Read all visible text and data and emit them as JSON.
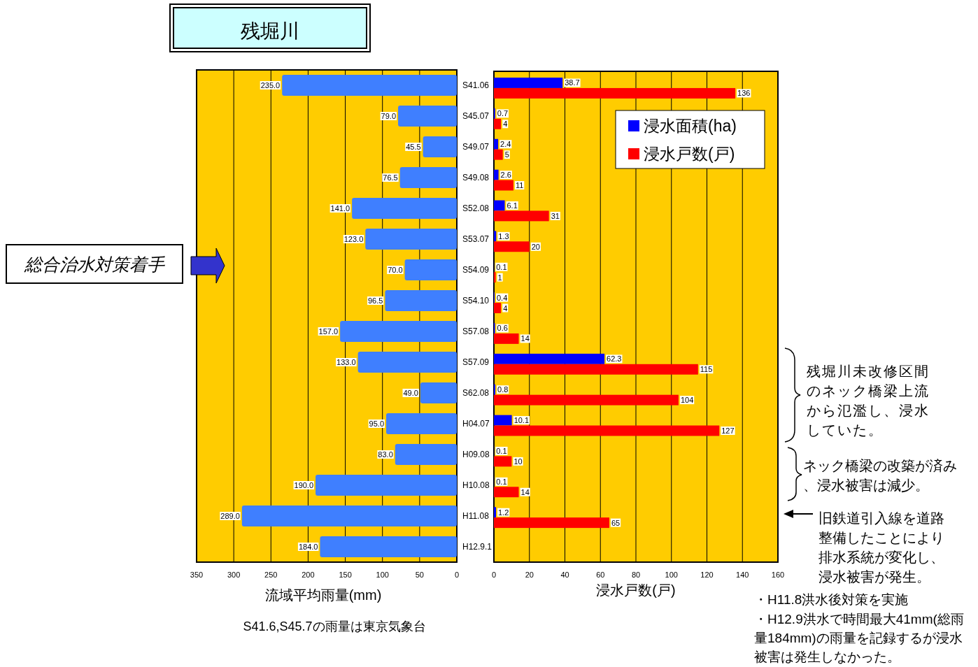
{
  "chart_data": [
    {
      "type": "bar",
      "orientation": "horizontal",
      "title": "残堀川",
      "categories": [
        "S41.06",
        "S45.07",
        "S49.07",
        "S49.08",
        "S52.08",
        "S53.07",
        "S54.09",
        "S54.10",
        "S57.08",
        "S57.09",
        "S62.08",
        "H04.07",
        "H09.08",
        "H10.08",
        "H11.08",
        "H12.9.1"
      ],
      "values": [
        235.0,
        79.0,
        45.5,
        76.5,
        141.0,
        123.0,
        70.0,
        96.5,
        157.0,
        133.0,
        49.0,
        95.0,
        83.0,
        190.0,
        289.0,
        184.0
      ],
      "value_labels": [
        "235.0",
        "79.0",
        "45.5",
        "76.5",
        "141.0",
        "123.0",
        "70.0",
        "96.5",
        "157.0",
        "133.0",
        "49.0",
        "95.0",
        "83.0",
        "190.0",
        "289.0",
        "184.0"
      ],
      "color": "#3f7fff",
      "xlim": [
        350,
        0
      ],
      "xticks": [
        350,
        300,
        250,
        200,
        150,
        100,
        50,
        0
      ],
      "xlabel": "流域平均雨量(mm)",
      "grid": "x",
      "annotations": [
        "総合治水対策着手",
        "S41.6,S45.7の雨量は東京気象台"
      ]
    },
    {
      "type": "bar",
      "orientation": "horizontal",
      "categories": [
        null,
        null,
        null,
        null,
        null,
        null,
        null,
        null,
        null,
        null,
        null,
        null,
        null,
        null,
        null,
        null
      ],
      "series": [
        {
          "name": "浸水面積(ha)",
          "color": "#0000ff",
          "values": [
            38.7,
            0.7,
            2.4,
            2.6,
            6.1,
            1.3,
            0.1,
            0.4,
            0.6,
            62.3,
            0.8,
            10.1,
            0.1,
            0.1,
            1.2,
            null
          ]
        },
        {
          "name": "浸水戸数(戸)",
          "color": "#ff0000",
          "values": [
            136,
            4,
            5,
            11,
            31,
            20,
            1,
            4,
            14,
            115,
            104,
            127,
            10,
            14,
            65,
            null
          ]
        }
      ],
      "xlim": [
        0,
        160
      ],
      "xticks": [
        0,
        20,
        40,
        60,
        80,
        100,
        120,
        140,
        160
      ],
      "xlabel": "浸水戸数(戸)",
      "grid": "x",
      "legend": "top right",
      "data_labels": true,
      "annotations": [
        "残堀川未改修区間のネック橋梁上流から氾濫し、浸水していた。",
        "ネック橋梁の改築が済み、浸水被害は減少。",
        "旧鉄道引入線を道路整備したことにより排水系統が変化し、浸水被害が発生。",
        "・H11.8洪水後対策を実施",
        "・H12.9洪水で時間最大41mm(総雨量184mm)の雨量を記録するが浸水被害は発生しなかった。"
      ]
    }
  ]
}
